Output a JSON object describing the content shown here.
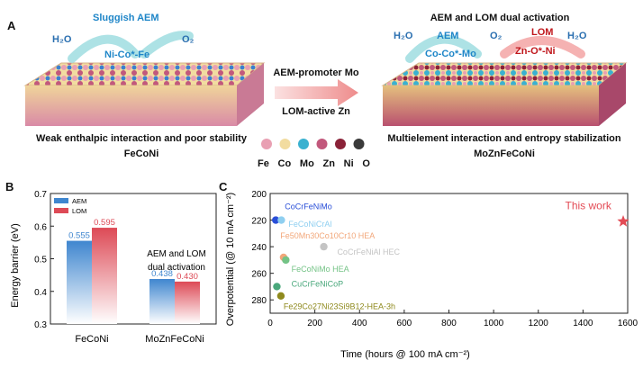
{
  "panelA": {
    "letter": "A",
    "left": {
      "heading": "Sluggish AEM",
      "h2o": "H₂O",
      "o2": "O₂",
      "site": "Ni-Co*-Fe",
      "caption": "Weak enthalpic interaction and poor stability",
      "name": "FeCoNi"
    },
    "middle": {
      "top": "AEM-promoter Mo",
      "bottom": "LOM-active Zn"
    },
    "right": {
      "heading": "AEM and LOM dual activation",
      "h2o_left": "H₂O",
      "aem": "AEM",
      "o2": "O₂",
      "lom": "LOM",
      "h2o_right": "H₂O",
      "site_aem": "Co-Co*-Mo",
      "site_lom": "Zn-O*-Ni",
      "caption": "Multielement interaction and entropy stabilization",
      "name": "MoZnFeCoNi"
    },
    "legend": [
      {
        "label": "Fe",
        "color": "#e9a0b3"
      },
      {
        "label": "Co",
        "color": "#f2dca0"
      },
      {
        "label": "Mo",
        "color": "#3ab1d0"
      },
      {
        "label": "Zn",
        "color": "#c2587c"
      },
      {
        "label": "Ni",
        "color": "#8a2238"
      },
      {
        "label": "O",
        "color": "#3a3a3a"
      }
    ],
    "colors": {
      "aem": "#1f86c8",
      "lom": "#c0171c",
      "arrow": "#ee8c8c",
      "plain": "#1f5fa0"
    }
  },
  "panelB": {
    "letter": "B",
    "chart_data": {
      "type": "bar",
      "categories": [
        "FeCoNi",
        "MoZnFeCoNi"
      ],
      "series": [
        {
          "name": "AEM",
          "values": [
            0.555,
            0.438
          ],
          "color": "#3f86cf"
        },
        {
          "name": "LOM",
          "values": [
            0.595,
            0.43
          ],
          "color": "#dd4a56"
        }
      ],
      "value_labels": [
        [
          "0.555",
          "0.438"
        ],
        [
          "0.595",
          "0.430"
        ]
      ],
      "ylabel": "Energy barrier (eV)",
      "ylim": [
        0.3,
        0.7
      ],
      "yticks": [
        "0.3",
        "0.4",
        "0.5",
        "0.6",
        "0.7"
      ],
      "annotation": [
        "AEM and LOM",
        "dual activation"
      ],
      "legend_position": "top-left"
    }
  },
  "panelC": {
    "letter": "C",
    "chart_data": {
      "type": "scatter",
      "xlabel": "Time (hours @ 100 mA cm⁻²)",
      "ylabel": "Overpotential (@ 10 mA cm⁻²)",
      "xlim": [
        0,
        1600
      ],
      "ylim": [
        200,
        290
      ],
      "y_inverted": true,
      "xticks": [
        "0",
        "200",
        "400",
        "600",
        "800",
        "1000",
        "1200",
        "1400",
        "1600"
      ],
      "yticks": [
        "200",
        "220",
        "240",
        "260",
        "280"
      ],
      "points": [
        {
          "label": "CoCrFeNiMo",
          "x": 25,
          "y": 220,
          "color": "#2a4fd8"
        },
        {
          "label": "FeCoNiCrAl",
          "x": 50,
          "y": 220,
          "color": "#8fcff0"
        },
        {
          "label": "Fe50Mn30Co10Cr10 HEA",
          "x": 60,
          "y": 248,
          "color": "#f2a77a"
        },
        {
          "label": "CoCrFeNiAl HEC",
          "x": 240,
          "y": 240,
          "color": "#c4c4c4"
        },
        {
          "label": "FeCoNiMo HEA",
          "x": 70,
          "y": 250,
          "color": "#74c386"
        },
        {
          "label": "CuCrFeNiCoP",
          "x": 30,
          "y": 270,
          "color": "#4aa87c"
        },
        {
          "label": "Fe29Co27Ni23Si9B12-HEA-3h",
          "x": 48,
          "y": 277,
          "color": "#8f8a1e"
        },
        {
          "label": "This work",
          "x": 1580,
          "y": 221,
          "color": "#e34b55"
        }
      ]
    }
  }
}
